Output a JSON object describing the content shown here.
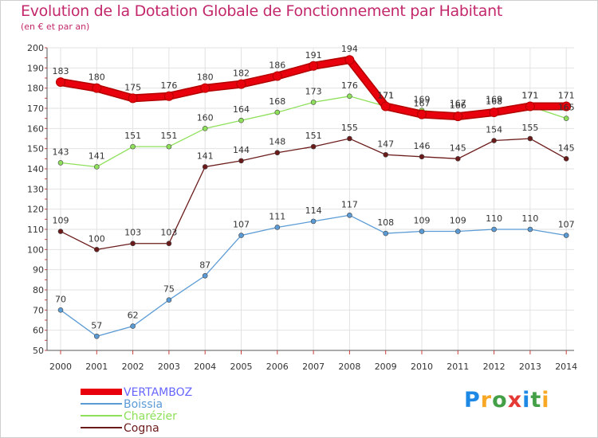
{
  "chart_data": {
    "type": "line",
    "title": "Evolution de la Dotation Globale de Fonctionnement par Habitant",
    "subtitle": "(en € et par an)",
    "x": [
      "2000",
      "2001",
      "2002",
      "2003",
      "2004",
      "2005",
      "2006",
      "2007",
      "2008",
      "2009",
      "2010",
      "2011",
      "2012",
      "2013",
      "2014"
    ],
    "ylim": [
      50,
      200
    ],
    "yticks": [
      50,
      60,
      70,
      80,
      90,
      100,
      110,
      120,
      130,
      140,
      150,
      160,
      170,
      180,
      190,
      200
    ],
    "series": [
      {
        "name": "VERTAMBOZ",
        "color": "#e8000d",
        "values": [
          183,
          180,
          175,
          176,
          180,
          182,
          186,
          191,
          194,
          171,
          167,
          166,
          168,
          171,
          171
        ]
      },
      {
        "name": "Boissia",
        "color": "#5b9bd5",
        "values": [
          70,
          57,
          62,
          75,
          87,
          107,
          111,
          114,
          117,
          108,
          109,
          109,
          110,
          110,
          107
        ]
      },
      {
        "name": "Charézier",
        "color": "#8ee05a",
        "values": [
          143,
          141,
          151,
          151,
          160,
          164,
          168,
          173,
          176,
          171,
          169,
          167,
          169,
          171,
          165
        ]
      },
      {
        "name": "Cogna",
        "color": "#6b1a1a",
        "values": [
          109,
          100,
          103,
          103,
          141,
          144,
          148,
          151,
          155,
          147,
          146,
          145,
          154,
          155,
          145
        ]
      }
    ]
  },
  "logo": {
    "text": "Proxiti",
    "letters": [
      "P",
      "r",
      "o",
      "x",
      "i",
      "t",
      "i"
    ],
    "colors": [
      "#1e88e5",
      "#f9a825",
      "#43a047",
      "#e53935",
      "#1e88e5",
      "#43a047",
      "#f9a825"
    ]
  }
}
